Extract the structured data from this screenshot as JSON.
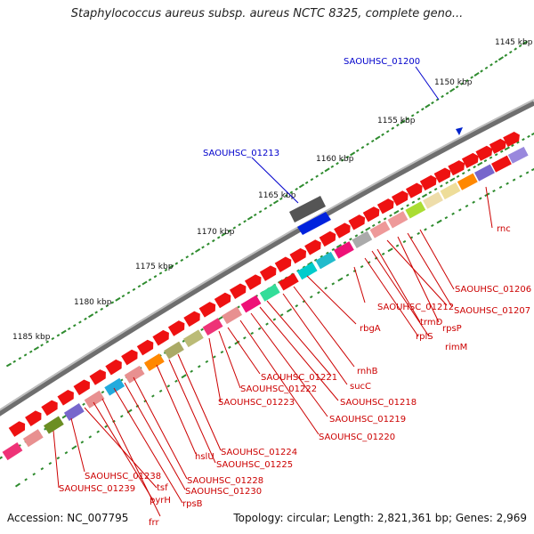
{
  "title": "Staphylococcus aureus subsp. aureus NCTC 8325, complete geno...",
  "footer": {
    "accession": "Accession: NC_007795",
    "summary": "Topology: circular; Length: 2,821,361 bp; Genes: 2,969"
  },
  "colors": {
    "label_red": "#cc0000",
    "label_blue": "#0000cc",
    "tick_green": "#2e8b2e"
  },
  "kbp_labels": [
    "1145 kbp",
    "1150 kbp",
    "1155 kbp",
    "1160 kbp",
    "1165 kbp",
    "1170 kbp",
    "1175 kbp",
    "1180 kbp",
    "1185 kbp"
  ],
  "gene_labels": {
    "saouhsc_01200": "SAOUHSC_01200",
    "saouhsc_01213": "SAOUHSC_01213",
    "rnc": "rnc",
    "saouhsc_01206": "SAOUHSC_01206",
    "saouhsc_01207": "SAOUHSC_01207",
    "rpsp": "rpsP",
    "saouhsc_01212": "SAOUHSC_01212",
    "trmd": "trmD",
    "rpls": "rplS",
    "rimm": "rimM",
    "rbga": "rbgA",
    "rnhb": "rnhB",
    "succ": "sucC",
    "saouhsc_01221": "SAOUHSC_01221",
    "saouhsc_01222": "SAOUHSC_01222",
    "saouhsc_01223": "SAOUHSC_01223",
    "saouhsc_01218": "SAOUHSC_01218",
    "saouhsc_01219": "SAOUHSC_01219",
    "saouhsc_01220": "SAOUHSC_01220",
    "saouhsc_01224": "SAOUHSC_01224",
    "saouhsc_01225": "SAOUHSC_01225",
    "hslu": "hslU",
    "saouhsc_01228": "SAOUHSC_01228",
    "saouhsc_01230": "SAOUHSC_01230",
    "saouhsc_01238": "SAOUHSC_01238",
    "saouhsc_01239": "SAOUHSC_01239",
    "tsf": "tsf",
    "pyrh": "pyrH",
    "rpsb": "rpsB",
    "frr": "frr"
  }
}
